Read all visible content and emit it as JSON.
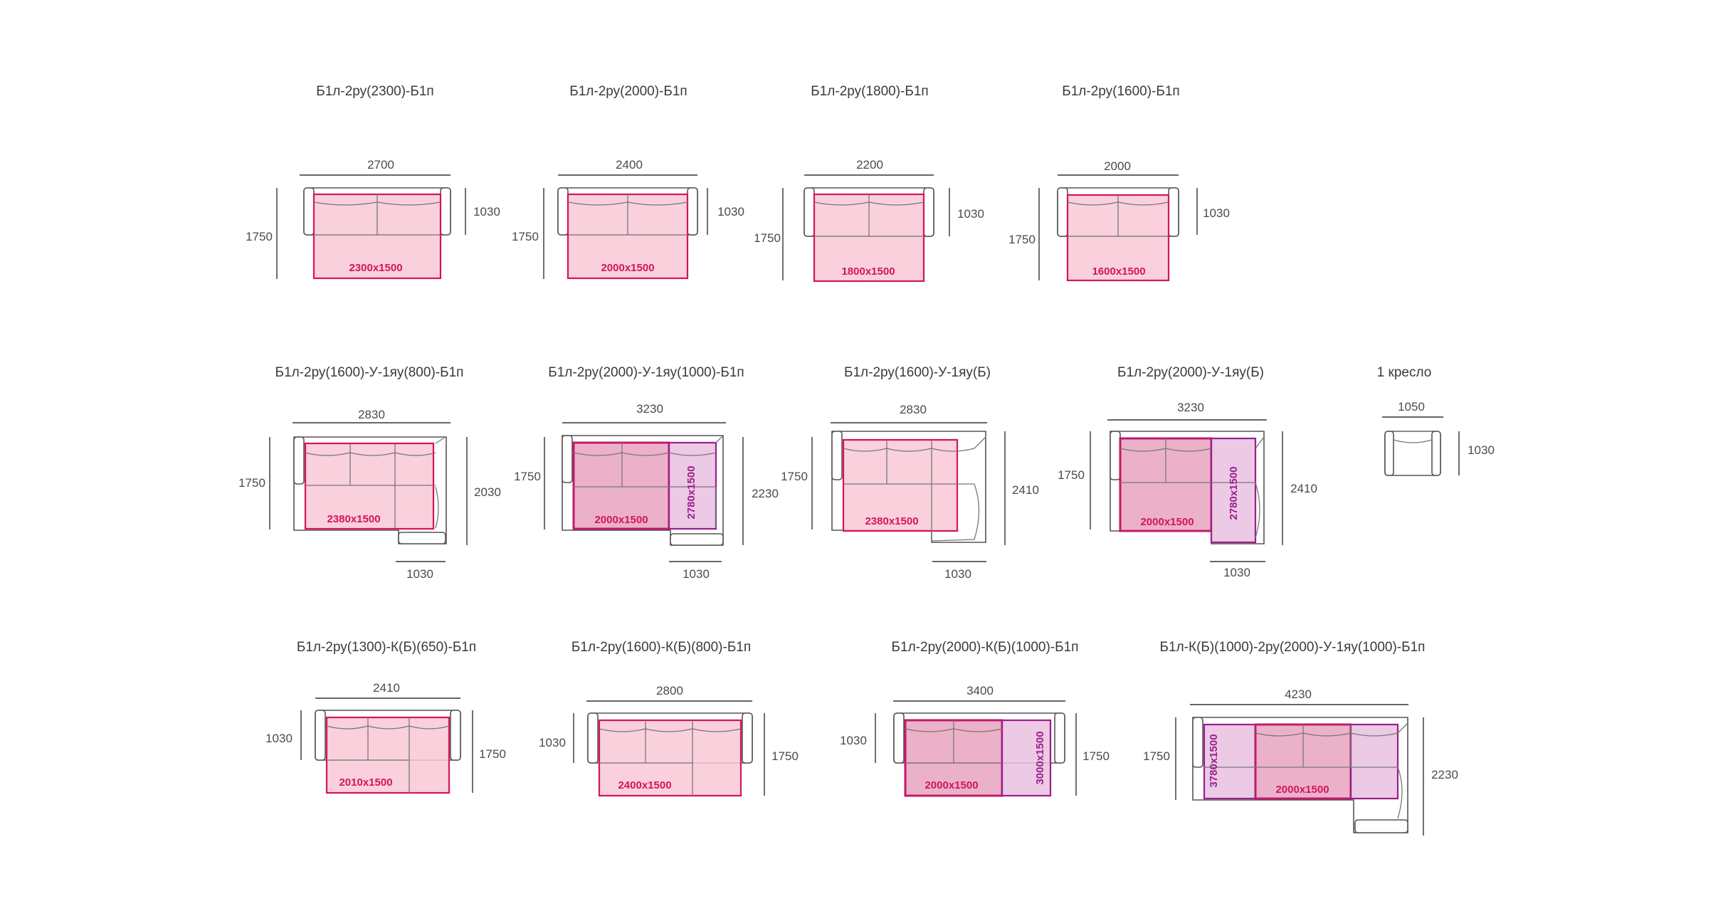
{
  "colors": {
    "bed_fill": "#f8c8d6",
    "bed_stroke": "#d4145a",
    "bed_dark_fill": "#e390b2",
    "bed_violet_fill": "#e9bfe0",
    "bed_violet_stroke": "#9b1e8c",
    "outline": "#555555",
    "text": "#3a3a3a"
  },
  "items": [
    {
      "title": "Б1л-2ру(2300)-Б1п",
      "width": "2700",
      "depth": "1750",
      "seat_depth": "1030",
      "bed": "2300x1500"
    },
    {
      "title": "Б1л-2ру(2000)-Б1п",
      "width": "2400",
      "depth": "1750",
      "seat_depth": "1030",
      "bed": "2000x1500"
    },
    {
      "title": "Б1л-2ру(1800)-Б1п",
      "width": "2200",
      "depth": "1750",
      "seat_depth": "1030",
      "bed": "1800x1500"
    },
    {
      "title": "Б1л-2ру(1600)-Б1п",
      "width": "2000",
      "depth": "1750",
      "seat_depth": "1030",
      "bed": "1600x1500"
    },
    {
      "title": "Б1л-2ру(1600)-У-1яу(800)-Б1п",
      "width": "2830",
      "depth": "1750",
      "side": "2030",
      "bottom": "1030",
      "bed": "2380x1500"
    },
    {
      "title": "Б1л-2ру(2000)-У-1яу(1000)-Б1п",
      "width": "3230",
      "depth": "1750",
      "side": "2230",
      "bottom": "1030",
      "bed": "2000x1500",
      "bed2": "2780x1500"
    },
    {
      "title": "Б1л-2ру(1600)-У-1яу(Б)",
      "width": "2830",
      "depth": "1750",
      "side": "2410",
      "bottom": "1030",
      "bed": "2380x1500"
    },
    {
      "title": "Б1л-2ру(2000)-У-1яу(Б)",
      "width": "3230",
      "depth": "1750",
      "side": "2410",
      "bottom": "1030",
      "bed": "2000x1500",
      "bed2": "2780x1500"
    },
    {
      "title": "1 кресло",
      "width": "1050",
      "seat_depth": "1030"
    },
    {
      "title": "Б1л-2ру(1300)-К(Б)(650)-Б1п",
      "width": "2410",
      "left": "1030",
      "right": "1750",
      "bed": "2010x1500"
    },
    {
      "title": "Б1л-2ру(1600)-К(Б)(800)-Б1п",
      "width": "2800",
      "left": "1030",
      "right": "1750",
      "bed": "2400x1500"
    },
    {
      "title": "Б1л-2ру(2000)-К(Б)(1000)-Б1п",
      "width": "3400",
      "left": "1030",
      "right": "1750",
      "bed": "2000x1500",
      "bed2": "3000x1500"
    },
    {
      "title": "Б1л-К(Б)(1000)-2ру(2000)-У-1яу(1000)-Б1п",
      "width": "4230",
      "left": "1750",
      "right": "2230",
      "bed": "2000x1500",
      "bed2": "3780x1500"
    }
  ]
}
